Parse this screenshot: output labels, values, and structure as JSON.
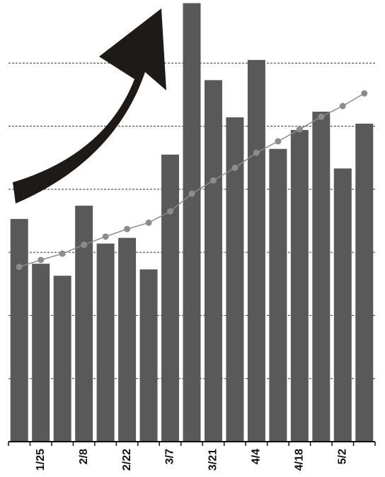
{
  "chart_data": {
    "type": "bar",
    "categories": [
      null,
      "1/25",
      null,
      "2/8",
      null,
      "2/22",
      null,
      "3/7",
      null,
      "3/21",
      null,
      "4/4",
      null,
      "4/18",
      null,
      "5/2",
      null
    ],
    "series": [
      {
        "type": "bar",
        "color": "#595959",
        "values": [
          3.53,
          2.82,
          2.63,
          3.74,
          3.14,
          3.23,
          2.73,
          4.55,
          6.95,
          5.73,
          5.14,
          6.05,
          4.64,
          4.94,
          5.23,
          4.33,
          5.04
        ]
      },
      {
        "type": "line",
        "color": "#8c8c8c",
        "values": [
          2.77,
          2.88,
          2.98,
          3.12,
          3.25,
          3.37,
          3.47,
          3.65,
          3.93,
          4.14,
          4.34,
          4.58,
          4.76,
          4.95,
          5.15,
          5.32,
          5.52
        ]
      }
    ],
    "ylim": [
      0,
      7
    ],
    "yticks": [
      1,
      2,
      3,
      4,
      5,
      6
    ],
    "grid": true
  }
}
